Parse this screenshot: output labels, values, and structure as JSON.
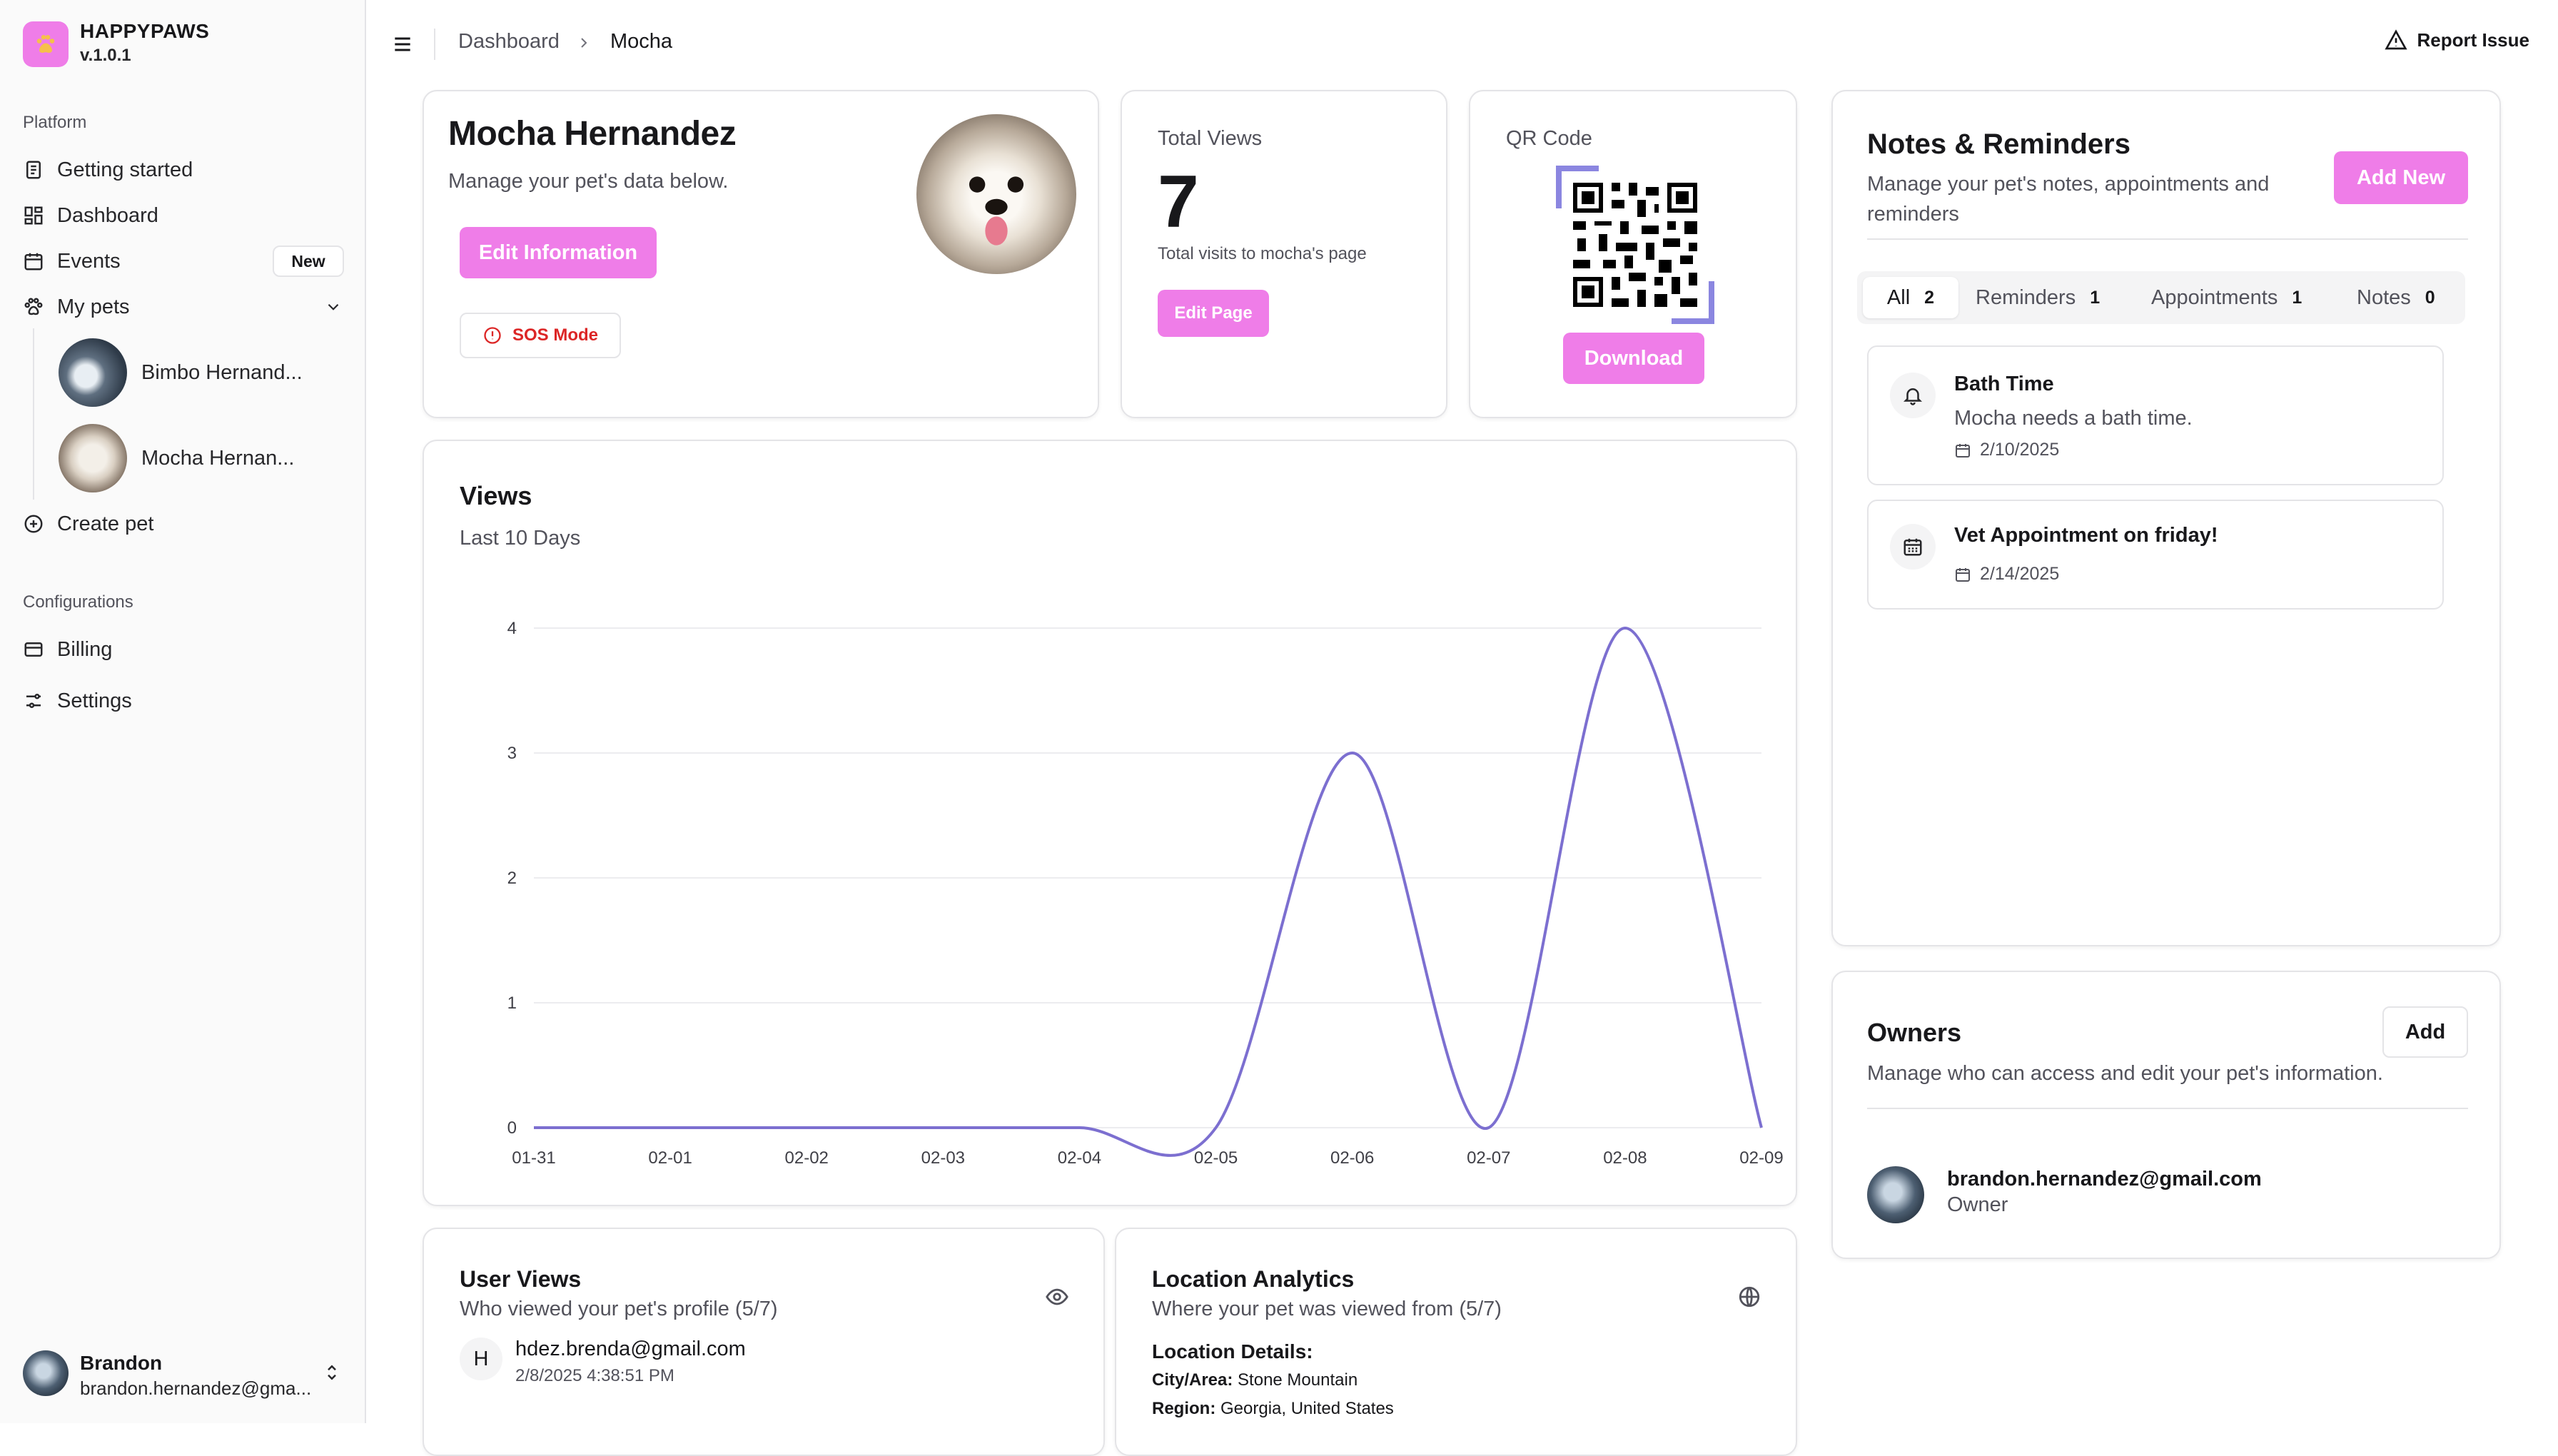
{
  "brand": {
    "name": "HAPPYPAWS",
    "version": "v.1.0.1"
  },
  "sidebar": {
    "platform_label": "Platform",
    "items": [
      {
        "label": "Getting started",
        "icon": "document-icon"
      },
      {
        "label": "Dashboard",
        "icon": "grid-icon"
      },
      {
        "label": "Events",
        "icon": "calendar-icon",
        "badge": "New"
      },
      {
        "label": "My pets",
        "icon": "paw-icon"
      }
    ],
    "pets": [
      {
        "label": "Bimbo Hernand..."
      },
      {
        "label": "Mocha Hernan..."
      }
    ],
    "create_pet": "Create pet",
    "config_label": "Configurations",
    "config_items": [
      {
        "label": "Billing",
        "icon": "card-icon"
      },
      {
        "label": "Settings",
        "icon": "sliders-icon"
      }
    ],
    "user": {
      "name": "Brandon",
      "email": "brandon.hernandez@gma..."
    }
  },
  "header": {
    "breadcrumb": [
      "Dashboard",
      "Mocha"
    ],
    "report": "Report Issue"
  },
  "profile": {
    "name": "Mocha Hernandez",
    "subtitle": "Manage your pet's data below.",
    "edit_button": "Edit Information",
    "sos_button": "SOS Mode"
  },
  "views_card": {
    "label": "Total Views",
    "count": "7",
    "caption": "Total visits to mocha's page",
    "button": "Edit Page"
  },
  "qr_card": {
    "label": "QR Code",
    "button": "Download"
  },
  "chart": {
    "title": "Views",
    "subtitle": "Last 10 Days"
  },
  "chart_data": {
    "type": "line",
    "title": "Views",
    "subtitle": "Last 10 Days",
    "categories": [
      "01-31",
      "02-01",
      "02-02",
      "02-03",
      "02-04",
      "02-05",
      "02-06",
      "02-07",
      "02-08",
      "02-09"
    ],
    "values": [
      0,
      0,
      0,
      0,
      0,
      0,
      3,
      0,
      4,
      0
    ],
    "yticks": [
      0,
      1,
      2,
      3,
      4
    ],
    "ylim": [
      0,
      4
    ],
    "color": "#7c6fd0",
    "grid": true
  },
  "user_views": {
    "title": "User Views",
    "subtitle": "Who viewed your pet's profile (5/7)",
    "entries": [
      {
        "initial": "H",
        "email": "hdez.brenda@gmail.com",
        "time": "2/8/2025 4:38:51 PM"
      }
    ]
  },
  "location": {
    "title": "Location Analytics",
    "subtitle": "Where your pet was viewed from (5/7)",
    "details_label": "Location Details:",
    "city_label": "City/Area:",
    "city": "Stone Mountain",
    "region_label": "Region:",
    "region": "Georgia, United States"
  },
  "notes": {
    "title": "Notes & Reminders",
    "subtitle_1": "Manage your pet's notes, appointments and",
    "subtitle_2": "reminders",
    "add_button": "Add New",
    "tabs": [
      {
        "label": "All",
        "count": "2"
      },
      {
        "label": "Reminders",
        "count": "1"
      },
      {
        "label": "Appointments",
        "count": "1"
      },
      {
        "label": "Notes",
        "count": "0"
      }
    ],
    "items": [
      {
        "title": "Bath Time",
        "desc": "Mocha needs a bath time.",
        "date": "2/10/2025"
      },
      {
        "title": "Vet Appointment on friday!",
        "date": "2/14/2025"
      }
    ]
  },
  "owners": {
    "title": "Owners",
    "subtitle": "Manage who can access and edit your pet's information.",
    "add_button": "Add",
    "list": [
      {
        "email": "brandon.hernandez@gmail.com",
        "role": "Owner"
      }
    ]
  },
  "colors": {
    "accent": "#ef7de8",
    "chart": "#7c6fd0",
    "sos": "#dc2626"
  }
}
